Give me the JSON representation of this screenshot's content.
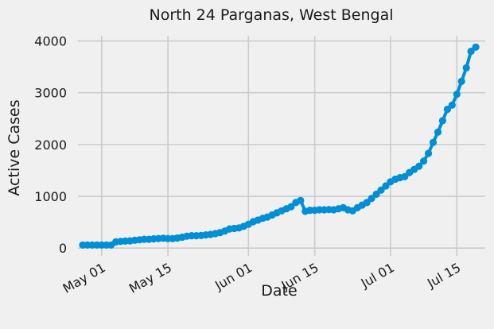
{
  "chart_data": {
    "type": "line",
    "title": "North 24 Parganas, West Bengal",
    "xlabel": "Date",
    "ylabel": "Active Cases",
    "x_ticks": [
      "May 01",
      "May 15",
      "Jun 01",
      "Jun 15",
      "Jul 01",
      "Jul 15"
    ],
    "y_ticks": [
      0,
      1000,
      2000,
      3000,
      4000
    ],
    "ylim": [
      -150,
      4100
    ],
    "xlim": [
      "2020-04-26",
      "2020-07-21"
    ],
    "grid": true,
    "color": "#008fd5",
    "series": [
      {
        "x": [
          "2020-04-27",
          "2020-04-28",
          "2020-04-29",
          "2020-04-30",
          "2020-05-01",
          "2020-05-02",
          "2020-05-03",
          "2020-05-04",
          "2020-05-05",
          "2020-05-06",
          "2020-05-07",
          "2020-05-08",
          "2020-05-09",
          "2020-05-10",
          "2020-05-11",
          "2020-05-12",
          "2020-05-13",
          "2020-05-14",
          "2020-05-15",
          "2020-05-16",
          "2020-05-17",
          "2020-05-18",
          "2020-05-19",
          "2020-05-20",
          "2020-05-21",
          "2020-05-22",
          "2020-05-23",
          "2020-05-24",
          "2020-05-25",
          "2020-05-26",
          "2020-05-27",
          "2020-05-28",
          "2020-05-29",
          "2020-05-30",
          "2020-05-31",
          "2020-06-01",
          "2020-06-02",
          "2020-06-03",
          "2020-06-04",
          "2020-06-05",
          "2020-06-06",
          "2020-06-07",
          "2020-06-08",
          "2020-06-09",
          "2020-06-10",
          "2020-06-11",
          "2020-06-12",
          "2020-06-13",
          "2020-06-14",
          "2020-06-15",
          "2020-06-16",
          "2020-06-17",
          "2020-06-18",
          "2020-06-19",
          "2020-06-20",
          "2020-06-21",
          "2020-06-22",
          "2020-06-23",
          "2020-06-24",
          "2020-06-25",
          "2020-06-26",
          "2020-06-27",
          "2020-06-28",
          "2020-06-29",
          "2020-06-30",
          "2020-07-01",
          "2020-07-02",
          "2020-07-03",
          "2020-07-04",
          "2020-07-05",
          "2020-07-06",
          "2020-07-07",
          "2020-07-08",
          "2020-07-09",
          "2020-07-10",
          "2020-07-11",
          "2020-07-12",
          "2020-07-13",
          "2020-07-14",
          "2020-07-15",
          "2020-07-16",
          "2020-07-17",
          "2020-07-18",
          "2020-07-19"
        ],
        "values": [
          60,
          60,
          60,
          60,
          60,
          60,
          60,
          120,
          130,
          135,
          140,
          150,
          160,
          170,
          170,
          180,
          185,
          190,
          185,
          185,
          195,
          210,
          230,
          240,
          240,
          245,
          255,
          265,
          280,
          300,
          330,
          370,
          380,
          390,
          420,
          460,
          510,
          540,
          575,
          600,
          640,
          680,
          720,
          760,
          800,
          880,
          920,
          710,
          730,
          730,
          740,
          740,
          745,
          740,
          760,
          780,
          740,
          720,
          780,
          830,
          880,
          960,
          1040,
          1120,
          1200,
          1280,
          1330,
          1360,
          1380,
          1460,
          1520,
          1580,
          1680,
          1830,
          2040,
          2240,
          2460,
          2680,
          2760,
          2970,
          3220,
          3480,
          3800,
          3880
        ]
      }
    ]
  }
}
